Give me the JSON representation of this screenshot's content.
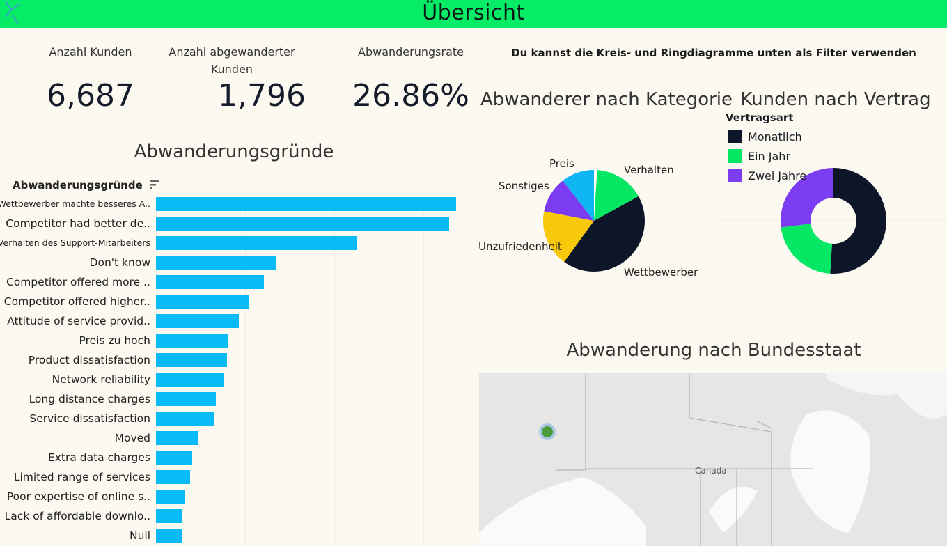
{
  "header": {
    "title": "Übersicht",
    "logo": "datacamp-logo"
  },
  "kpis": [
    {
      "label": "Anzahl Kunden",
      "value": "6,687"
    },
    {
      "label": "Anzahl abgewanderter Kunden",
      "value": "1,796"
    },
    {
      "label": "Abwanderungsrate",
      "value": "26.86%"
    }
  ],
  "hint": "Du kannst die Kreis- und Ringdiagramme unten als Filter verwenden",
  "colors": {
    "header": "#06ec66",
    "bar": "#08bbf7",
    "navy": "#0c1628",
    "green": "#06e864",
    "purple": "#7c3cf2",
    "yellow": "#f8c80a",
    "blue": "#10b6f4"
  },
  "chart_data": [
    {
      "type": "bar",
      "orientation": "horizontal",
      "title": "Abwanderungsgründe",
      "ylabel": "Abwanderungsgründe",
      "sort_icon": "sort-descending-icon",
      "categories": [
        "Wettbewerber machte besseres A..",
        "Competitor had better de..",
        "Verhalten des Support-Mitarbeiters",
        "Don't know",
        "Competitor offered more ..",
        "Competitor offered higher..",
        "Attitude of service provid..",
        "Preis zu hoch",
        "Product dissatisfaction",
        "Network reliability",
        "Long distance charges",
        "Service dissatisfaction",
        "Moved",
        "Extra data charges",
        "Limited range of services",
        "Poor expertise of online s..",
        "Lack of affordable downlo..",
        "Null"
      ],
      "values": [
        337,
        329,
        225,
        135,
        121,
        105,
        93,
        81,
        80,
        76,
        67,
        66,
        48,
        41,
        38,
        33,
        30,
        29
      ],
      "xlim": [
        0,
        350
      ],
      "grid": true
    },
    {
      "type": "pie",
      "title": "Abwanderer nach Kategorie",
      "slices": [
        {
          "label": "",
          "value": 1,
          "color": "#ffffff"
        },
        {
          "label": "Verhalten",
          "value": 16,
          "color": "#06e864"
        },
        {
          "label": "Wettbewerber",
          "value": 43,
          "color": "#0c1628"
        },
        {
          "label": "Unzufriedenheit",
          "value": 18,
          "color": "#f8c80a"
        },
        {
          "label": "Sonstiges",
          "value": 11.5,
          "color": "#7c3cf2"
        },
        {
          "label": "Preis",
          "value": 10.5,
          "color": "#10b6f4"
        }
      ]
    },
    {
      "type": "donut",
      "title": "Kunden nach Vertrag",
      "legend_title": "Vertragsart",
      "legend": "top-left",
      "slices": [
        {
          "label": "Monatlich",
          "value": 51,
          "color": "#0c1628"
        },
        {
          "label": "Ein Jahr",
          "value": 22,
          "color": "#06e864"
        },
        {
          "label": "Zwei Jahre",
          "value": 27,
          "color": "#7c3cf2"
        }
      ]
    }
  ],
  "map": {
    "title": "Abwanderung nach Bundesstaat",
    "place_label": "Canada"
  }
}
